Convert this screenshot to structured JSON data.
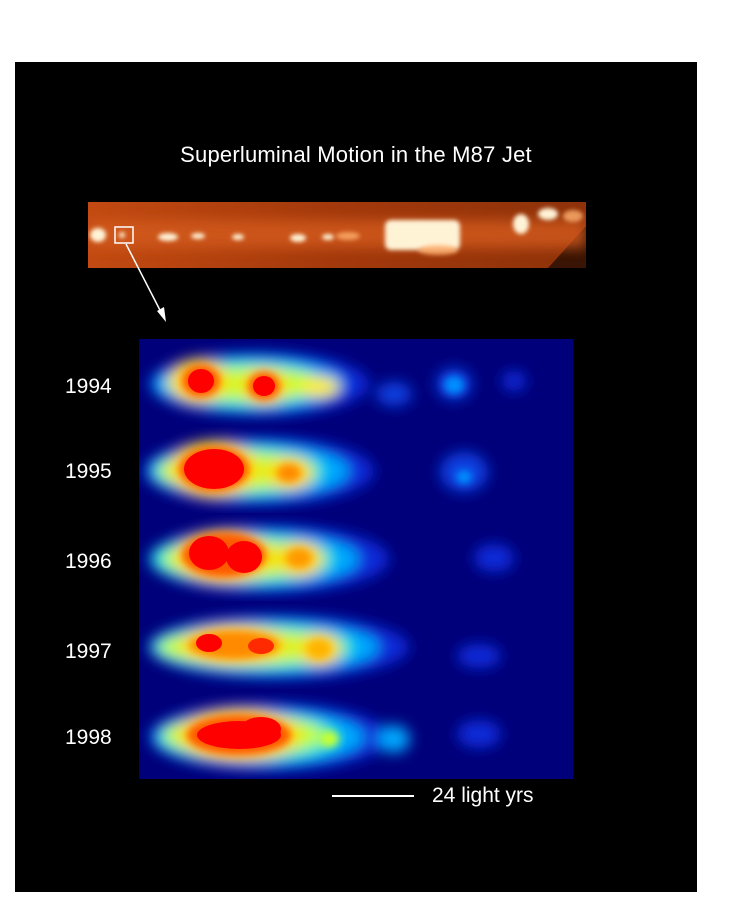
{
  "figure": {
    "title": "Superluminal Motion in the M87 Jet",
    "years": [
      "1994",
      "1995",
      "1996",
      "1997",
      "1998"
    ],
    "scale_bar_label": "24 light yrs",
    "colors": {
      "background": "#000000",
      "page": "#ffffff",
      "jet_hot": "#fff6dd",
      "jet_warm": "#e8622a",
      "jet_base": "#a83c0c",
      "map_low": "#00007a",
      "map_high": "#ff0000"
    },
    "icons": [
      "zoom-box-icon",
      "zoom-arrow-icon"
    ]
  }
}
